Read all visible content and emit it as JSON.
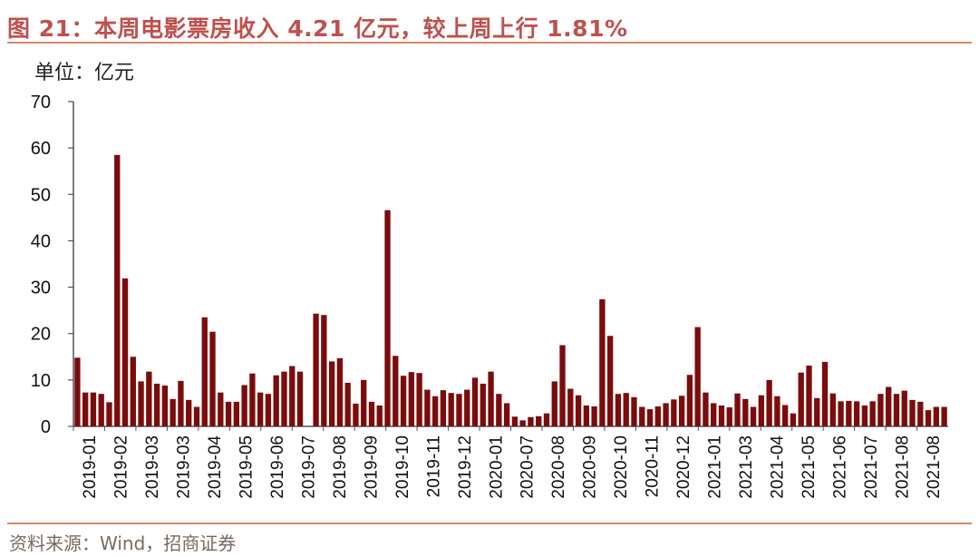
{
  "title": "图 21：本周电影票房收入 4.21 亿元，较上周上行 1.81%",
  "unit_label": "单位：亿元",
  "source": "资料来源：Wind，招商证券",
  "colors": {
    "bar": "#7b0c0c",
    "accent": "#c0504d",
    "rule": "#d9886a"
  },
  "chart_data": {
    "type": "bar",
    "title": "",
    "xlabel": "",
    "ylabel": "单位：亿元",
    "ylim": [
      0,
      70
    ],
    "yticks": [
      0,
      10,
      20,
      30,
      40,
      50,
      60,
      70
    ],
    "grid": false,
    "x_tick_labels": [
      "2019-01",
      "2019-02",
      "2019-03",
      "2019-03",
      "2019-04",
      "2019-05",
      "2019-06",
      "2019-07",
      "2019-08",
      "2019-09",
      "2019-10",
      "2019-11",
      "2019-12",
      "2020-01",
      "2020-07",
      "2020-08",
      "2020-09",
      "2020-10",
      "2020-11",
      "2020-12",
      "2021-01",
      "2021-03",
      "2021-04",
      "2021-05",
      "2021-06",
      "2021-07",
      "2021-08",
      "2021-08"
    ],
    "values": [
      14.8,
      7.3,
      7.3,
      7.0,
      5.2,
      58.5,
      31.9,
      15.0,
      9.7,
      11.8,
      9.2,
      8.8,
      5.9,
      9.8,
      5.7,
      4.2,
      23.5,
      20.4,
      7.3,
      5.3,
      5.3,
      8.9,
      11.4,
      7.3,
      7.0,
      11.0,
      11.8,
      13.0,
      11.8,
      null,
      24.3,
      24.0,
      14.0,
      14.7,
      9.4,
      4.9,
      10.0,
      5.3,
      4.5,
      46.6,
      15.2,
      10.9,
      11.7,
      11.5,
      7.9,
      6.5,
      7.8,
      7.2,
      7.0,
      7.9,
      10.5,
      9.2,
      11.8,
      7.0,
      5.0,
      2.1,
      1.3,
      2.0,
      2.2,
      2.8,
      9.7,
      17.5,
      8.1,
      6.7,
      4.5,
      4.3,
      27.4,
      19.5,
      7.0,
      7.2,
      6.3,
      4.2,
      3.7,
      4.3,
      5.0,
      5.8,
      6.6,
      11.1,
      21.4,
      7.3,
      5.0,
      4.5,
      4.1,
      7.1,
      5.9,
      4.2,
      6.7,
      10.0,
      6.5,
      4.6,
      2.8,
      11.6,
      13.1,
      6.1,
      13.9,
      7.1,
      5.4,
      5.5,
      5.4,
      4.5,
      5.4,
      7.0,
      8.5,
      7.0,
      7.7,
      5.7,
      5.3,
      3.5,
      4.2,
      4.2
    ]
  }
}
